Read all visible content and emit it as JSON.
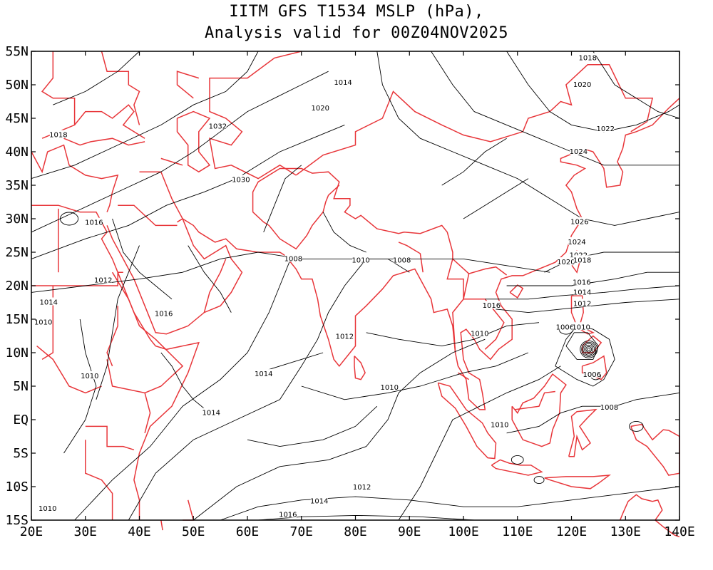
{
  "title": {
    "line1": "IITM GFS T1534 MSLP (hPa),",
    "line2": "Analysis valid for 00Z04NOV2025"
  },
  "map": {
    "lon_range": [
      20,
      140
    ],
    "lat_range": [
      -15,
      55
    ],
    "lon_ticks": [
      "20E",
      "30E",
      "40E",
      "50E",
      "60E",
      "70E",
      "80E",
      "90E",
      "100E",
      "110E",
      "120E",
      "130E",
      "140E"
    ],
    "lat_ticks": [
      "55N",
      "50N",
      "45N",
      "40N",
      "35N",
      "30N",
      "25N",
      "20N",
      "15N",
      "10N",
      "5N",
      "EQ",
      "5S",
      "10S",
      "15S"
    ],
    "contour_color": "#000000",
    "coastline_color": "#e8363a",
    "contour_labels": [
      {
        "text": "1018",
        "lon": 123.0,
        "lat": 54.0
      },
      {
        "text": "1014",
        "lon": 77.7,
        "lat": 50.3
      },
      {
        "text": "1020",
        "lon": 122.0,
        "lat": 50.0
      },
      {
        "text": "1020",
        "lon": 73.5,
        "lat": 46.5
      },
      {
        "text": "1018",
        "lon": 25.0,
        "lat": 42.5
      },
      {
        "text": "1032",
        "lon": 54.5,
        "lat": 43.8
      },
      {
        "text": "1022",
        "lon": 126.3,
        "lat": 43.4
      },
      {
        "text": "1024",
        "lon": 121.3,
        "lat": 40.0
      },
      {
        "text": "1030",
        "lon": 58.8,
        "lat": 35.8
      },
      {
        "text": "1016",
        "lon": 31.6,
        "lat": 29.4
      },
      {
        "text": "1026",
        "lon": 121.5,
        "lat": 29.5
      },
      {
        "text": "1024",
        "lon": 121.0,
        "lat": 26.5
      },
      {
        "text": "1022",
        "lon": 121.3,
        "lat": 24.5
      },
      {
        "text": "1008",
        "lon": 68.5,
        "lat": 24.0
      },
      {
        "text": "1010",
        "lon": 81.0,
        "lat": 23.8
      },
      {
        "text": "1008",
        "lon": 88.6,
        "lat": 23.8
      },
      {
        "text": "1020",
        "lon": 119.0,
        "lat": 23.5
      },
      {
        "text": "1018",
        "lon": 122.0,
        "lat": 23.8
      },
      {
        "text": "1012",
        "lon": 33.3,
        "lat": 20.8
      },
      {
        "text": "1016",
        "lon": 121.9,
        "lat": 20.5
      },
      {
        "text": "1014",
        "lon": 122.0,
        "lat": 19.0
      },
      {
        "text": "1014",
        "lon": 23.2,
        "lat": 17.5
      },
      {
        "text": "1012",
        "lon": 122.0,
        "lat": 17.3
      },
      {
        "text": "1016",
        "lon": 105.2,
        "lat": 17.0
      },
      {
        "text": "1016",
        "lon": 44.5,
        "lat": 15.8
      },
      {
        "text": "1010",
        "lon": 22.2,
        "lat": 14.5
      },
      {
        "text": "1006",
        "lon": 118.8,
        "lat": 13.8
      },
      {
        "text": "1010",
        "lon": 121.8,
        "lat": 13.8
      },
      {
        "text": "1012",
        "lon": 78.0,
        "lat": 12.4
      },
      {
        "text": "1010",
        "lon": 103.0,
        "lat": 12.8
      },
      {
        "text": "1014",
        "lon": 63.0,
        "lat": 6.8
      },
      {
        "text": "1010",
        "lon": 30.8,
        "lat": 6.5
      },
      {
        "text": "1006",
        "lon": 123.8,
        "lat": 6.7
      },
      {
        "text": "1010",
        "lon": 86.3,
        "lat": 4.8
      },
      {
        "text": "1008",
        "lon": 127.0,
        "lat": 1.8
      },
      {
        "text": "1014",
        "lon": 53.3,
        "lat": 1.0
      },
      {
        "text": "1010",
        "lon": 106.7,
        "lat": -0.8
      },
      {
        "text": "1012",
        "lon": 81.2,
        "lat": -10.1
      },
      {
        "text": "1014",
        "lon": 73.3,
        "lat": -12.2
      },
      {
        "text": "1010",
        "lon": 23.0,
        "lat": -13.3
      },
      {
        "text": "1016",
        "lon": 67.5,
        "lat": -14.2
      }
    ]
  }
}
